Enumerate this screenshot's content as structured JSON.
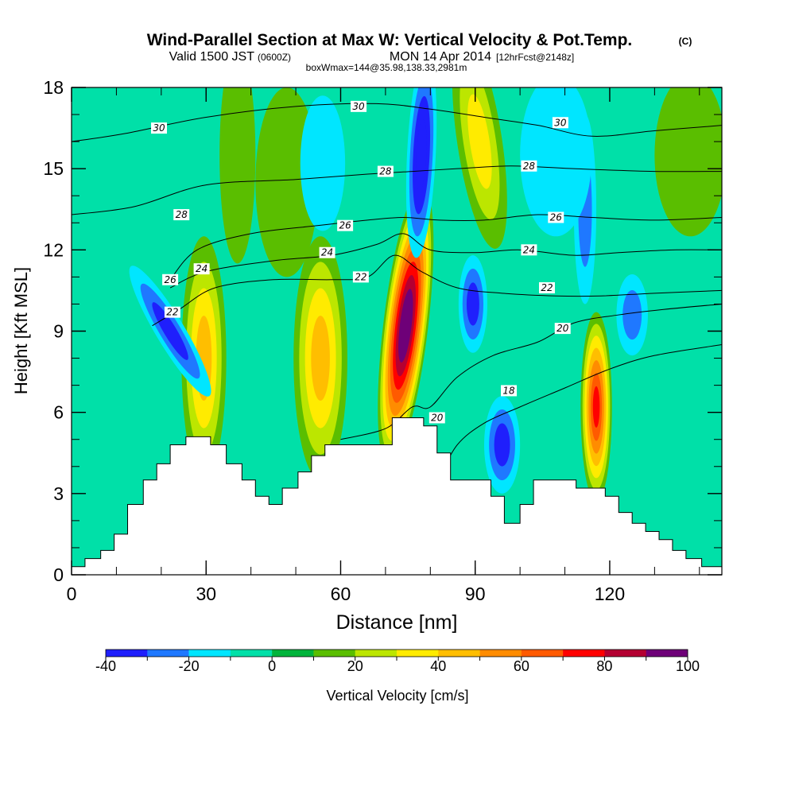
{
  "title": {
    "main": "Wind-Parallel Section at Max W: Vertical Velocity & Pot.Temp.",
    "copyright": "(C)",
    "valid_prefix": "Valid 1500 JST",
    "valid_zulu": "(0600Z)",
    "valid_date": "MON 14 Apr 2014",
    "forecast": "[12hrFcst@2148z]",
    "box": "boxWmax=144@35.98,138.33,2981m"
  },
  "chart_data": {
    "type": "heatmap",
    "xlabel": "Distance [nm]",
    "ylabel": "Height [Kft MSL]",
    "xlim": [
      0,
      145
    ],
    "ylim": [
      0,
      18
    ],
    "x_ticks": [
      0,
      30,
      60,
      90,
      120
    ],
    "x_tick_labels": [
      "0",
      "30",
      "60",
      "90",
      "120"
    ],
    "y_ticks": [
      0,
      3,
      6,
      9,
      12,
      15,
      18
    ],
    "y_tick_labels": [
      "0",
      "3",
      "6",
      "9",
      "12",
      "15",
      "18"
    ],
    "colorbar": {
      "label": "Vertical Velocity [cm/s]",
      "levels": [
        -40,
        -30,
        -20,
        -10,
        0,
        10,
        20,
        30,
        40,
        50,
        60,
        70,
        80,
        90,
        100
      ],
      "tick_labels": [
        "-40",
        "-20",
        "0",
        "20",
        "40",
        "60",
        "80",
        "100"
      ],
      "colors": [
        "#1f1ffc",
        "#1f78ff",
        "#00e6ff",
        "#00e0a8",
        "#00b43c",
        "#5abe00",
        "#bce600",
        "#ffeb00",
        "#ffbe00",
        "#ff8c00",
        "#ff5a00",
        "#ff0000",
        "#b40032",
        "#6e0078"
      ]
    },
    "background_color": "#00e0a8",
    "terrain": [
      [
        0,
        0.3
      ],
      [
        3,
        0.3
      ],
      [
        3,
        0.6
      ],
      [
        6.5,
        0.6
      ],
      [
        6.5,
        0.9
      ],
      [
        9.5,
        0.9
      ],
      [
        9.5,
        1.5
      ],
      [
        12.5,
        1.5
      ],
      [
        12.5,
        2.0
      ],
      [
        12.5,
        2.6
      ],
      [
        16,
        2.6
      ],
      [
        16,
        3.5
      ],
      [
        19,
        3.5
      ],
      [
        19,
        4.1
      ],
      [
        22,
        4.1
      ],
      [
        22,
        4.8
      ],
      [
        25.5,
        4.8
      ],
      [
        25.5,
        5.1
      ],
      [
        31,
        5.1
      ],
      [
        31,
        4.8
      ],
      [
        34.5,
        4.8
      ],
      [
        34.5,
        4.1
      ],
      [
        38,
        4.1
      ],
      [
        38,
        3.5
      ],
      [
        41,
        3.5
      ],
      [
        41,
        2.9
      ],
      [
        44,
        2.9
      ],
      [
        44,
        2.6
      ],
      [
        47,
        2.6
      ],
      [
        47,
        3.2
      ],
      [
        50.5,
        3.2
      ],
      [
        50.5,
        3.8
      ],
      [
        53.5,
        3.8
      ],
      [
        53.5,
        4.4
      ],
      [
        56.5,
        4.4
      ],
      [
        56.5,
        4.8
      ],
      [
        71.5,
        4.8
      ],
      [
        71.5,
        5.8
      ],
      [
        78.5,
        5.8
      ],
      [
        78.5,
        5.5
      ],
      [
        81.5,
        5.5
      ],
      [
        81.5,
        4.5
      ],
      [
        84.5,
        4.5
      ],
      [
        84.5,
        3.5
      ],
      [
        93.5,
        3.5
      ],
      [
        93.5,
        2.9
      ],
      [
        96.5,
        2.9
      ],
      [
        96.5,
        1.9
      ],
      [
        100,
        1.9
      ],
      [
        100,
        2.6
      ],
      [
        103,
        2.6
      ],
      [
        103,
        3.5
      ],
      [
        112.5,
        3.5
      ],
      [
        112.5,
        3.2
      ],
      [
        119,
        3.2
      ],
      [
        119,
        2.9
      ],
      [
        122,
        2.9
      ],
      [
        122,
        2.3
      ],
      [
        125,
        2.3
      ],
      [
        125,
        1.9
      ],
      [
        128,
        1.9
      ],
      [
        128,
        1.6
      ],
      [
        131,
        1.6
      ],
      [
        131,
        1.3
      ],
      [
        134,
        1.3
      ],
      [
        134,
        0.9
      ],
      [
        137,
        0.9
      ],
      [
        137,
        0.6
      ],
      [
        140.5,
        0.6
      ],
      [
        140.5,
        0.3
      ],
      [
        145,
        0.3
      ]
    ],
    "w_features": [
      {
        "x": 29.5,
        "y": 8.0,
        "rx": 5,
        "ry": 4.5,
        "w_max": 45,
        "tilt": 0
      },
      {
        "x": 55.5,
        "y": 8.0,
        "rx": 6,
        "ry": 4.5,
        "w_max": 40,
        "tilt": 0
      },
      {
        "x": 74.5,
        "y": 9.2,
        "rx": 5,
        "ry": 5.2,
        "w_max": 100,
        "tilt": 0.12
      },
      {
        "x": 117,
        "y": 6.2,
        "rx": 3.5,
        "ry": 3.5,
        "w_max": 70,
        "tilt": 0
      },
      {
        "x": 91,
        "y": 16.0,
        "rx": 5,
        "ry": 4,
        "w_max": 30,
        "tilt": -0.15
      },
      {
        "x": 48,
        "y": 14.5,
        "rx": 7,
        "ry": 3.5,
        "w_max": 15,
        "tilt": 0
      },
      {
        "x": 37,
        "y": 15.5,
        "rx": 4,
        "ry": 4,
        "w_max": 12,
        "tilt": 0
      },
      {
        "x": 138,
        "y": 15.5,
        "rx": 8,
        "ry": 3,
        "w_max": 10,
        "tilt": 0
      },
      {
        "x": 78,
        "y": 15.5,
        "rx": 3.2,
        "ry": 3.8,
        "w_max": -40,
        "tilt": 0.05
      },
      {
        "x": 22,
        "y": 9.0,
        "rx": 3.2,
        "ry": 2.8,
        "w_max": -35,
        "tilt": -0.6
      },
      {
        "x": 89.5,
        "y": 10.0,
        "rx": 3.2,
        "ry": 1.8,
        "w_max": -35,
        "tilt": 0
      },
      {
        "x": 96,
        "y": 4.8,
        "rx": 4,
        "ry": 1.8,
        "w_max": -35,
        "tilt": 0
      },
      {
        "x": 125,
        "y": 9.6,
        "rx": 3.5,
        "ry": 1.5,
        "w_max": -25,
        "tilt": 0
      },
      {
        "x": 114.5,
        "y": 13.5,
        "rx": 2.5,
        "ry": 3.5,
        "w_max": -25,
        "tilt": 0
      },
      {
        "x": 108,
        "y": 15.5,
        "rx": 8,
        "ry": 3,
        "w_max": -15,
        "tilt": 0
      },
      {
        "x": 56,
        "y": 15.2,
        "rx": 5,
        "ry": 2.5,
        "w_max": -12,
        "tilt": 0
      }
    ],
    "theta_contours": [
      {
        "value": 18,
        "pts": [
          [
            82,
            3.6
          ],
          [
            86,
            4.8
          ],
          [
            92,
            5.6
          ],
          [
            100,
            6.2
          ],
          [
            110,
            6.9
          ],
          [
            120,
            7.6
          ],
          [
            130,
            8.1
          ],
          [
            145,
            8.5
          ]
        ]
      },
      {
        "value": 20,
        "pts": [
          [
            60,
            5.0
          ],
          [
            70,
            5.4
          ],
          [
            76,
            6.2
          ],
          [
            80,
            6.2
          ],
          [
            86,
            7.3
          ],
          [
            94,
            8.1
          ],
          [
            104,
            8.6
          ],
          [
            112,
            9.3
          ],
          [
            122,
            9.6
          ],
          [
            132,
            9.8
          ],
          [
            145,
            10.0
          ]
        ]
      },
      {
        "value": 22,
        "pts": [
          [
            18,
            9.2
          ],
          [
            24,
            9.8
          ],
          [
            32,
            10.6
          ],
          [
            45,
            10.9
          ],
          [
            58,
            10.9
          ],
          [
            66,
            11.0
          ],
          [
            72,
            11.8
          ],
          [
            78,
            11.2
          ],
          [
            86,
            10.6
          ],
          [
            96,
            10.4
          ],
          [
            108,
            10.3
          ],
          [
            118,
            10.3
          ],
          [
            130,
            10.4
          ],
          [
            145,
            10.5
          ]
        ]
      },
      {
        "value": 24,
        "pts": [
          [
            22,
            10.6
          ],
          [
            30,
            11.2
          ],
          [
            45,
            11.6
          ],
          [
            58,
            11.8
          ],
          [
            68,
            12.2
          ],
          [
            74,
            12.6
          ],
          [
            80,
            12.0
          ],
          [
            90,
            11.9
          ],
          [
            100,
            12.0
          ],
          [
            112,
            11.8
          ],
          [
            122,
            11.9
          ],
          [
            134,
            12.0
          ],
          [
            145,
            12.0
          ]
        ]
      },
      {
        "value": 26,
        "pts": [
          [
            22,
            10.9
          ],
          [
            28,
            12.0
          ],
          [
            40,
            12.6
          ],
          [
            55,
            12.9
          ],
          [
            66,
            13.1
          ],
          [
            74,
            13.2
          ],
          [
            82,
            13.1
          ],
          [
            92,
            13.1
          ],
          [
            104,
            13.3
          ],
          [
            116,
            13.2
          ],
          [
            130,
            13.1
          ],
          [
            145,
            13.2
          ]
        ]
      },
      {
        "value": 28,
        "pts": [
          [
            0,
            13.3
          ],
          [
            14,
            13.6
          ],
          [
            30,
            14.4
          ],
          [
            50,
            14.6
          ],
          [
            66,
            14.8
          ],
          [
            76,
            14.9
          ],
          [
            86,
            15.0
          ],
          [
            98,
            15.1
          ],
          [
            112,
            15.0
          ],
          [
            130,
            14.9
          ],
          [
            145,
            14.9
          ]
        ]
      },
      {
        "value": 30,
        "pts": [
          [
            0,
            16.0
          ],
          [
            12,
            16.3
          ],
          [
            30,
            16.9
          ],
          [
            50,
            17.3
          ],
          [
            68,
            17.4
          ],
          [
            80,
            17.2
          ],
          [
            92,
            16.9
          ],
          [
            104,
            16.6
          ],
          [
            116,
            16.2
          ],
          [
            130,
            16.4
          ],
          [
            145,
            16.6
          ]
        ]
      }
    ],
    "contour_labels": [
      {
        "text": "30",
        "x": 19.5,
        "y": 16.5
      },
      {
        "text": "30",
        "x": 64,
        "y": 17.3
      },
      {
        "text": "30",
        "x": 109,
        "y": 16.7
      },
      {
        "text": "28",
        "x": 24.5,
        "y": 13.3
      },
      {
        "text": "28",
        "x": 70,
        "y": 14.9
      },
      {
        "text": "28",
        "x": 102,
        "y": 15.1
      },
      {
        "text": "26",
        "x": 22,
        "y": 10.9
      },
      {
        "text": "26",
        "x": 61,
        "y": 12.9
      },
      {
        "text": "26",
        "x": 108,
        "y": 13.2
      },
      {
        "text": "24",
        "x": 29,
        "y": 11.3
      },
      {
        "text": "24",
        "x": 57,
        "y": 11.9
      },
      {
        "text": "24",
        "x": 102,
        "y": 12.0
      },
      {
        "text": "22",
        "x": 22.5,
        "y": 9.7
      },
      {
        "text": "22",
        "x": 64.5,
        "y": 11.0
      },
      {
        "text": "22",
        "x": 106,
        "y": 10.6
      },
      {
        "text": "20",
        "x": 81.5,
        "y": 5.8
      },
      {
        "text": "20",
        "x": 109.5,
        "y": 9.1
      },
      {
        "text": "18",
        "x": 97.5,
        "y": 6.8
      }
    ]
  }
}
